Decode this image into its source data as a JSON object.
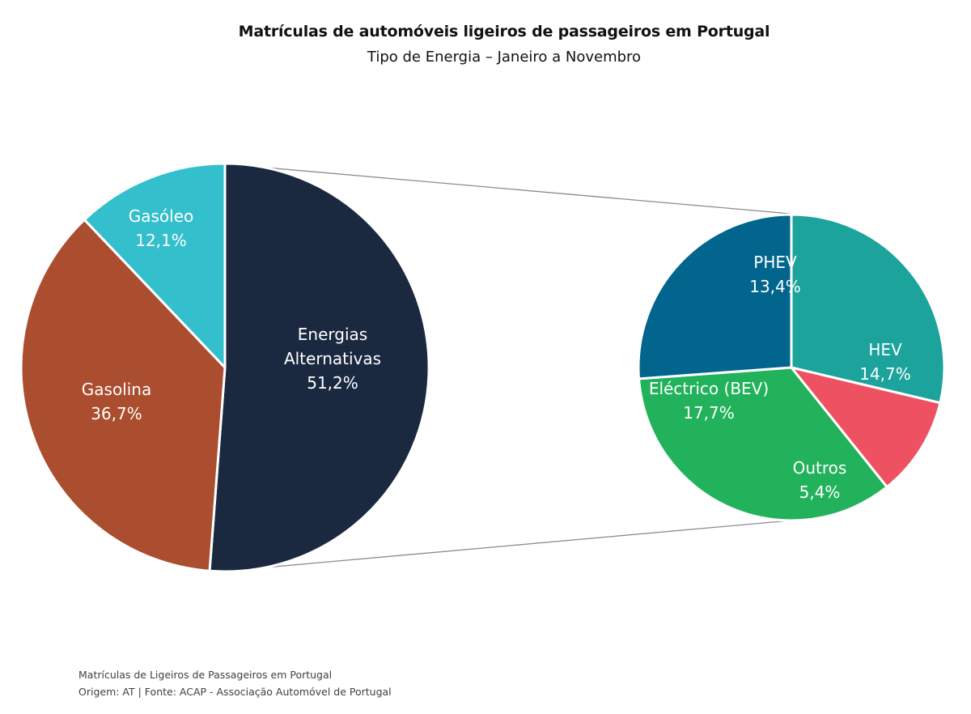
{
  "chart_data": {
    "type": "pie",
    "title": "Matrículas de automóveis ligeiros de passageiros em Portugal",
    "subtitle": "Tipo de Energia – Janeiro a Novembro",
    "main_pie": {
      "slices": [
        {
          "label_lines": [
            "Energias",
            "Alternativas"
          ],
          "value_text": "51,2%",
          "value": 51.2,
          "color": "#1b2940"
        },
        {
          "label_lines": [
            "Gasolina"
          ],
          "value_text": "36,7%",
          "value": 36.7,
          "color": "#ab4d2f"
        },
        {
          "label_lines": [
            "Gasóleo"
          ],
          "value_text": "12,1%",
          "value": 12.1,
          "color": "#34bfcc"
        }
      ]
    },
    "detail_pie": {
      "slices": [
        {
          "label_lines": [
            "HEV"
          ],
          "value_text": "14,7%",
          "value": 14.7,
          "color": "#1ba39c"
        },
        {
          "label_lines": [
            "Outros"
          ],
          "value_text": "5,4%",
          "value": 5.4,
          "color": "#ee5162"
        },
        {
          "label_lines": [
            "Eléctrico (BEV)"
          ],
          "value_text": "17,7%",
          "value": 17.7,
          "color": "#22b25b"
        },
        {
          "label_lines": [
            "PHEV"
          ],
          "value_text": "13,4%",
          "value": 13.4,
          "color": "#02658e"
        }
      ]
    }
  },
  "footer": {
    "line1": "Matrículas de Ligeiros de Passageiros em Portugal",
    "line2": "Origem: AT | Fonte: ACAP - Associação Automóvel de Portugal"
  }
}
